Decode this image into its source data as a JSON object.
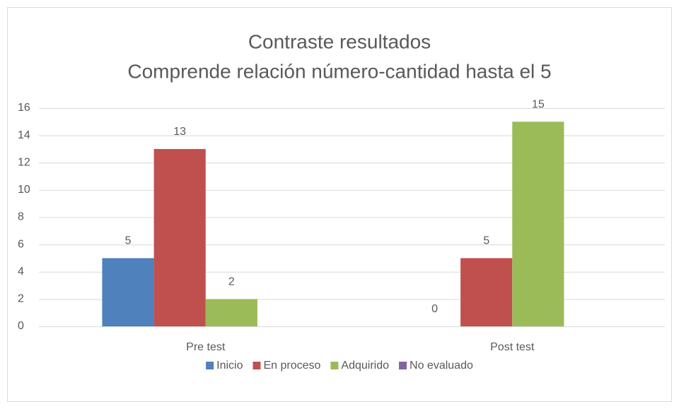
{
  "chart_data": {
    "type": "bar",
    "title": [
      "Contraste resultados",
      "Comprende relación número-cantidad hasta el 5"
    ],
    "categories": [
      "Pre test",
      "Post test"
    ],
    "series": [
      {
        "name": "Inicio",
        "color": "#4f81bd",
        "values": [
          5,
          0
        ]
      },
      {
        "name": "En proceso",
        "color": "#c0504d",
        "values": [
          13,
          5
        ]
      },
      {
        "name": "Adquirido",
        "color": "#9bbb59",
        "values": [
          2,
          15
        ]
      },
      {
        "name": "No evaluado",
        "color": "#8064a2",
        "values": [
          null,
          null
        ]
      }
    ],
    "ylim": [
      0,
      16
    ],
    "yticks": [
      0,
      2,
      4,
      6,
      8,
      10,
      12,
      14,
      16
    ],
    "grid": true,
    "legend": "bottom"
  }
}
